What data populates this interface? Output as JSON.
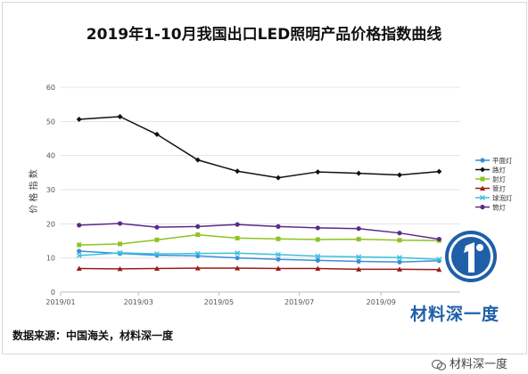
{
  "source_text": "数据来源：中国海关，材料深一度",
  "brand_text": "材料深一度",
  "watermark_text": "材料深一度",
  "logo_icon": "blue-circle-1-logo",
  "chart_data": {
    "type": "line",
    "title": "2019年1-10月我国出口LED照明产品价格指数曲线",
    "ylabel": "价 格 指 数",
    "xlabel": "",
    "ylim": [
      0,
      60
    ],
    "yticks": [
      0,
      10,
      20,
      30,
      40,
      50,
      60
    ],
    "xlim": [
      "2019-01-01",
      "2019-10-31"
    ],
    "xticks": [
      "2019/01",
      "2019/03",
      "2019/05",
      "2019/07",
      "2019/09"
    ],
    "x": [
      "2019-01-15",
      "2019-02-15",
      "2019-03-15",
      "2019-04-15",
      "2019-05-15",
      "2019-06-15",
      "2019-07-15",
      "2019-08-15",
      "2019-09-15",
      "2019-10-15"
    ],
    "legend_position": "right",
    "series": [
      {
        "name": "平面灯",
        "color": "#3b8fd6",
        "marker": "circle",
        "values": [
          12.0,
          11.3,
          10.8,
          10.6,
          10.0,
          9.6,
          9.3,
          9.0,
          8.8,
          9.2
        ]
      },
      {
        "name": "路灯",
        "color": "#111111",
        "marker": "diamond",
        "values": [
          50.6,
          51.4,
          46.2,
          38.7,
          35.4,
          33.5,
          35.2,
          34.8,
          34.3,
          35.3
        ]
      },
      {
        "name": "射灯",
        "color": "#8fc31f",
        "marker": "square",
        "values": [
          13.8,
          14.1,
          15.3,
          16.8,
          15.8,
          15.6,
          15.4,
          15.5,
          15.2,
          15.1
        ]
      },
      {
        "name": "管灯",
        "color": "#9b1b1b",
        "marker": "triangle",
        "values": [
          6.9,
          6.8,
          6.9,
          7.0,
          7.0,
          6.9,
          6.9,
          6.7,
          6.7,
          6.6
        ]
      },
      {
        "name": "球泡灯",
        "color": "#3cc0de",
        "marker": "x",
        "values": [
          10.7,
          11.5,
          11.2,
          11.3,
          11.4,
          11.0,
          10.5,
          10.3,
          10.1,
          9.6
        ]
      },
      {
        "name": "筒灯",
        "color": "#5b2a86",
        "marker": "circle",
        "values": [
          19.6,
          20.1,
          19.0,
          19.2,
          19.8,
          19.2,
          18.8,
          18.6,
          17.3,
          15.5
        ]
      }
    ]
  }
}
